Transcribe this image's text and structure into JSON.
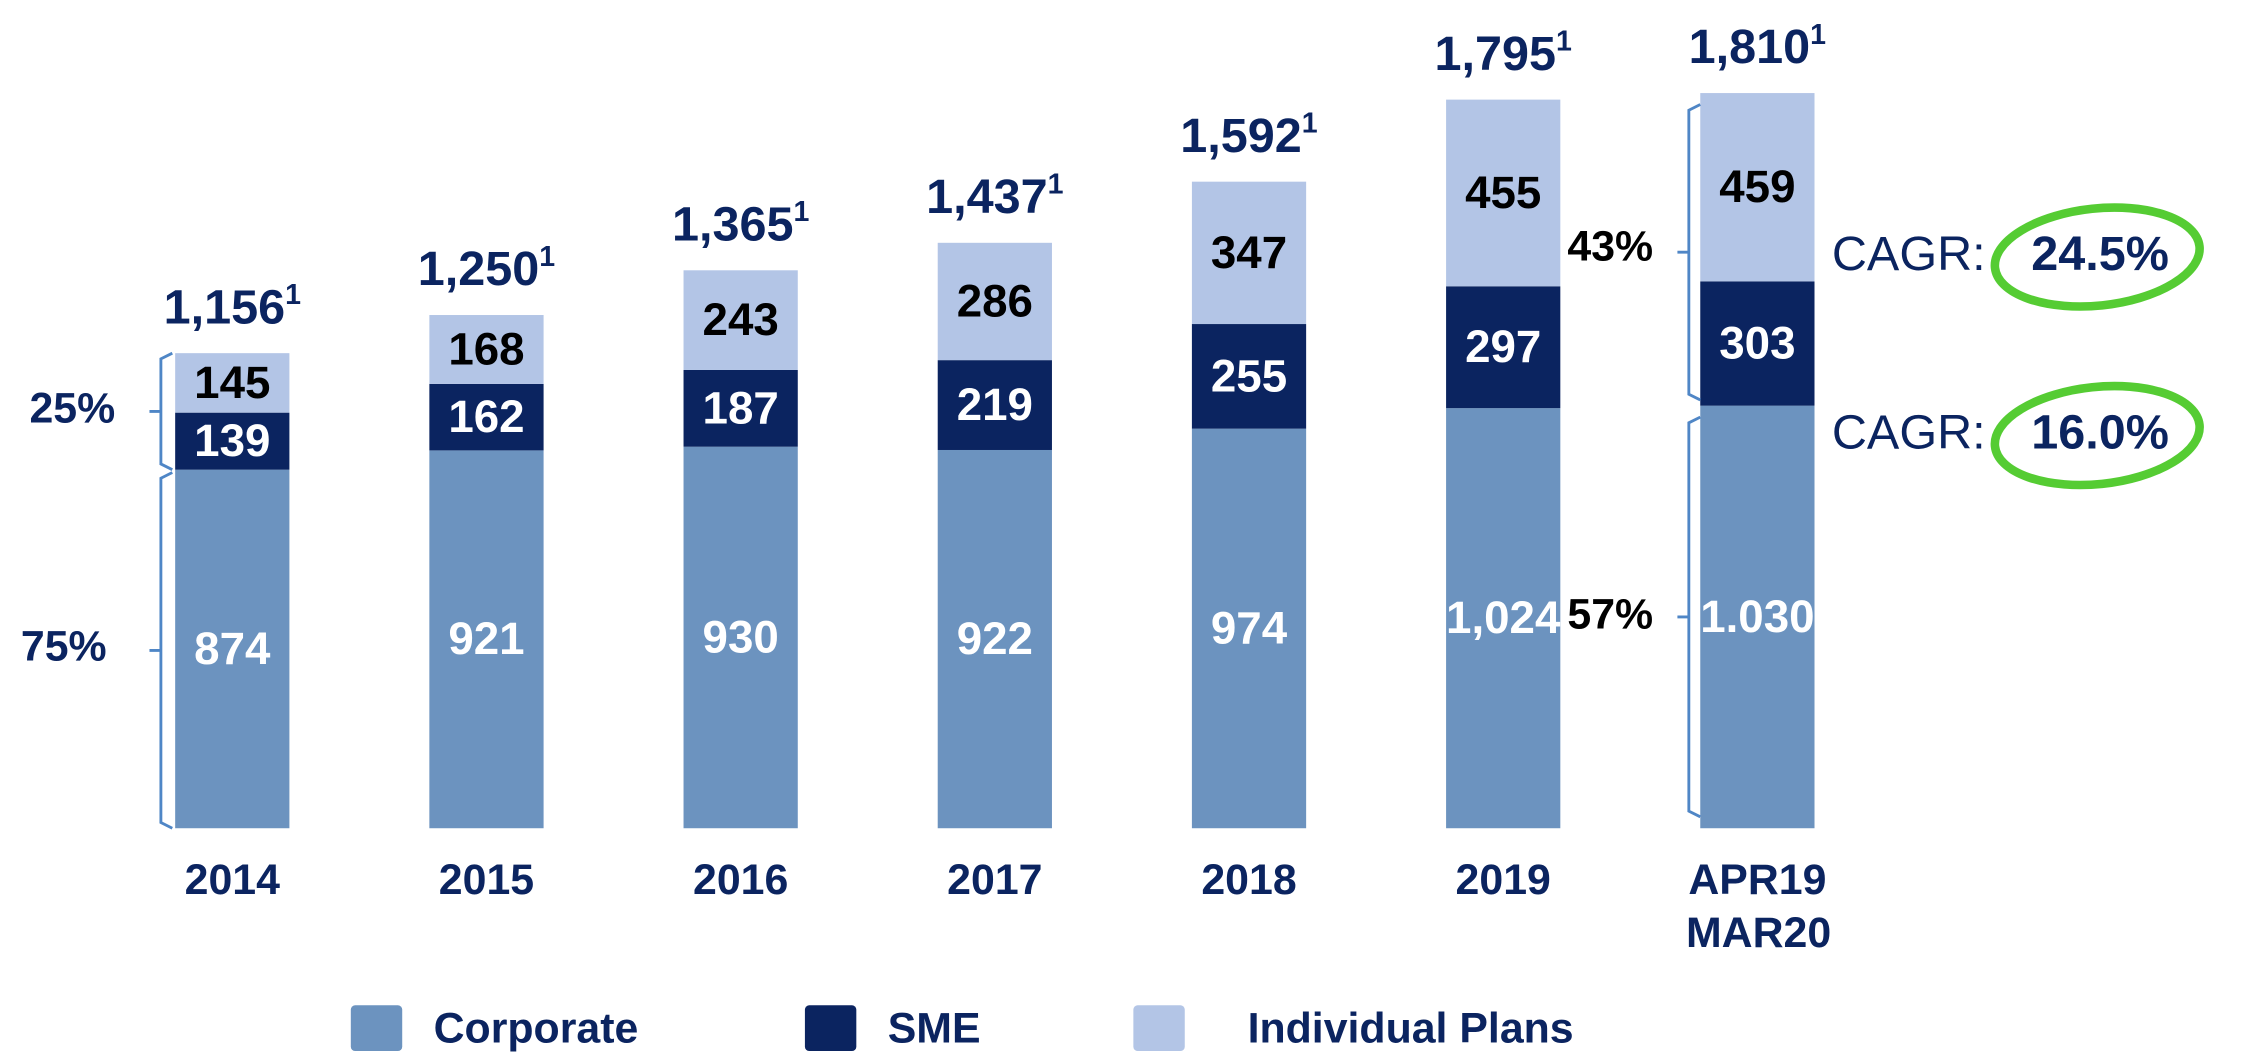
{
  "chart_data": {
    "type": "stacked_bar",
    "categories": [
      "2014",
      "2015",
      "2016",
      "2017",
      "2018",
      "2019",
      "APR19 MAR20"
    ],
    "series": [
      {
        "name": "Corporate",
        "color": "#6c93bf",
        "values": [
          874,
          921,
          930,
          922,
          974,
          1024,
          1030
        ],
        "value_labels": [
          "874",
          "921",
          "930",
          "922",
          "974",
          "1,024",
          "1.030"
        ]
      },
      {
        "name": "SME",
        "color": "#0b2460",
        "values": [
          139,
          162,
          187,
          219,
          255,
          297,
          303
        ]
      },
      {
        "name": "Individual Plans",
        "color": "#b3c5e6",
        "values": [
          145,
          168,
          243,
          286,
          347,
          455,
          459
        ]
      }
    ],
    "totals": {
      "values": [
        1156,
        1250,
        1365,
        1437,
        1592,
        1795,
        1810
      ],
      "value_labels": [
        "1,156",
        "1,250",
        "1,365",
        "1,437",
        "1,592",
        "1,795",
        "1,810"
      ],
      "footnote": "1"
    },
    "annotations": [
      "25%",
      "75%",
      "43%",
      "57%"
    ],
    "cagr": {
      "label": "CAGR:",
      "values": [
        "24.5%",
        "16.0%"
      ]
    },
    "legend": "bottom"
  }
}
